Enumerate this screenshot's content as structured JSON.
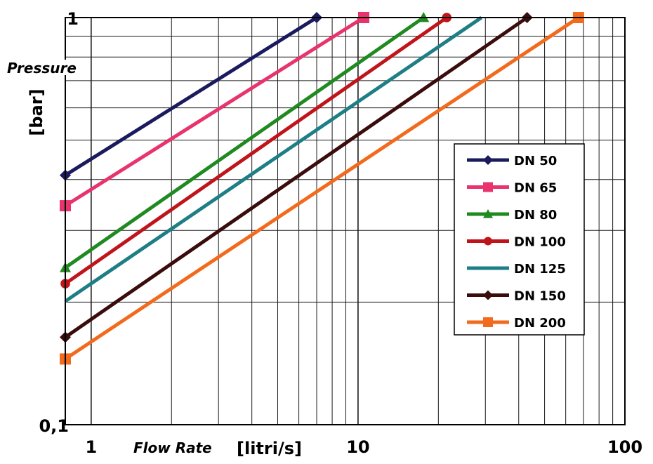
{
  "chart_data": {
    "type": "line",
    "xscale": "log",
    "yscale": "log",
    "xlim": [
      0.8,
      100
    ],
    "ylim": [
      0.1,
      1
    ],
    "grid": true,
    "legend_position": "right",
    "xlabel_italic": "Flow Rate",
    "xlabel_unit": "[litri/s]",
    "ylabel_italic": "Pressure",
    "ylabel_unit": "[bar]",
    "x_tick_labels": [
      {
        "value": 1,
        "label": "1"
      },
      {
        "value": 10,
        "label": "10"
      },
      {
        "value": 100,
        "label": "100"
      }
    ],
    "y_tick_labels": [
      {
        "value": 1,
        "label": "1"
      },
      {
        "value": 0.1,
        "label": "0,1"
      }
    ],
    "series": [
      {
        "name": "DN 50",
        "color": "#1a1a5e",
        "marker": "diamond",
        "x": [
          0.8,
          7.0
        ],
        "y": [
          0.41,
          1.0
        ]
      },
      {
        "name": "DN 65",
        "color": "#e8336d",
        "marker": "square",
        "x": [
          0.8,
          10.5
        ],
        "y": [
          0.345,
          1.0
        ]
      },
      {
        "name": "DN 80",
        "color": "#1f8a1f",
        "marker": "triangle",
        "x": [
          0.8,
          17.6
        ],
        "y": [
          0.243,
          1.0
        ]
      },
      {
        "name": "DN 100",
        "color": "#c0141b",
        "marker": "circle",
        "x": [
          0.8,
          21.5
        ],
        "y": [
          0.222,
          1.0
        ]
      },
      {
        "name": "DN 125",
        "color": "#1e7e85",
        "marker": "none",
        "x": [
          0.8,
          29.0
        ],
        "y": [
          0.201,
          1.0
        ]
      },
      {
        "name": "DN 150",
        "color": "#3a0c0c",
        "marker": "diamond",
        "x": [
          0.8,
          43.0
        ],
        "y": [
          0.164,
          1.0
        ]
      },
      {
        "name": "DN 200",
        "color": "#f26a1b",
        "marker": "square",
        "x": [
          0.8,
          67.0
        ],
        "y": [
          0.145,
          1.0
        ]
      }
    ]
  }
}
